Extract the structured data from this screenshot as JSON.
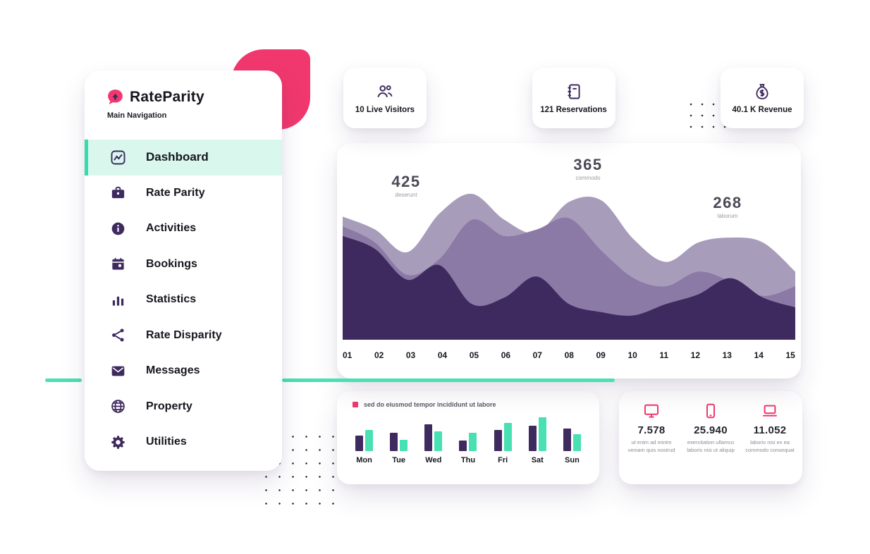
{
  "palette": {
    "pink": "#F1386E",
    "purple_dark": "#3E2A5E",
    "mint": "#49E0B3",
    "mint_light": "#D9F7EC",
    "text_dark": "#16161F",
    "text_gray": "#8B8B96",
    "area_light": "#A89CBB",
    "area_mid": "#8C7AA6"
  },
  "sidebar": {
    "logo_text": "RateParity",
    "section_label": "Main Navigation",
    "items": [
      {
        "label": "Dashboard",
        "icon": "chart-line-icon",
        "active": true
      },
      {
        "label": "Rate Parity",
        "icon": "briefcase-icon",
        "active": false
      },
      {
        "label": "Activities",
        "icon": "info-circle-icon",
        "active": false
      },
      {
        "label": "Bookings",
        "icon": "calendar-icon",
        "active": false
      },
      {
        "label": "Statistics",
        "icon": "bar-chart-icon",
        "active": false
      },
      {
        "label": "Rate Disparity",
        "icon": "share-icon",
        "active": false
      },
      {
        "label": "Messages",
        "icon": "envelope-icon",
        "active": false
      },
      {
        "label": "Property",
        "icon": "globe-icon",
        "active": false
      },
      {
        "label": "Utilities",
        "icon": "gear-icon",
        "active": false
      }
    ]
  },
  "stat_cards": [
    {
      "label": "10 Live Visitors",
      "icon": "people-icon"
    },
    {
      "label": "121 Reservations",
      "icon": "notebook-icon"
    },
    {
      "label": "40.1 K Revenue",
      "icon": "money-bag-icon"
    }
  ],
  "chart_data": [
    {
      "type": "area",
      "title": "",
      "x": [
        "01",
        "02",
        "03",
        "04",
        "05",
        "06",
        "07",
        "08",
        "09",
        "10",
        "11",
        "12",
        "13",
        "14",
        "15"
      ],
      "ylim": [
        0,
        1
      ],
      "grid": false,
      "legend_position": "none",
      "series": [
        {
          "name": "layer-back",
          "color": "#A89CBB",
          "values": [
            0.76,
            0.68,
            0.54,
            0.78,
            0.9,
            0.74,
            0.66,
            0.85,
            0.86,
            0.62,
            0.48,
            0.6,
            0.63,
            0.6,
            0.42
          ]
        },
        {
          "name": "layer-mid",
          "color": "#8C7AA6",
          "values": [
            0.7,
            0.6,
            0.4,
            0.5,
            0.74,
            0.64,
            0.68,
            0.75,
            0.55,
            0.38,
            0.33,
            0.42,
            0.36,
            0.27,
            0.33
          ]
        },
        {
          "name": "layer-front",
          "color": "#3E2A5E",
          "values": [
            0.64,
            0.56,
            0.37,
            0.46,
            0.22,
            0.26,
            0.39,
            0.22,
            0.17,
            0.15,
            0.22,
            0.28,
            0.38,
            0.26,
            0.2
          ]
        }
      ],
      "annotations": [
        {
          "value": "425",
          "label": "deserunt"
        },
        {
          "value": "365",
          "label": "commodo"
        },
        {
          "value": "268",
          "label": "laborum"
        }
      ]
    },
    {
      "type": "bar",
      "legend": "sed do eiusmod tempor incididunt ut labore",
      "legend_color": "#F1386E",
      "categories": [
        "Mon",
        "Tue",
        "Wed",
        "Thu",
        "Fri",
        "Sat",
        "Sun"
      ],
      "ylim": [
        0,
        50
      ],
      "series": [
        {
          "name": "purple",
          "color": "#3E2A5E",
          "values": [
            22,
            26,
            38,
            15,
            30,
            36,
            32
          ]
        },
        {
          "name": "mint",
          "color": "#49E0B3",
          "values": [
            30,
            16,
            28,
            26,
            40,
            48,
            24
          ]
        }
      ]
    }
  ],
  "devices": {
    "items": [
      {
        "icon": "monitor-icon",
        "value": "7.578",
        "caption": "ut enim ad minim veniam quis nostrud"
      },
      {
        "icon": "phone-icon",
        "value": "25.940",
        "caption": "exercitation ullamco laboris nisi ut aliquip"
      },
      {
        "icon": "laptop-icon",
        "value": "11.052",
        "caption": "laboris nisi ex ea commodo consequat"
      }
    ]
  }
}
